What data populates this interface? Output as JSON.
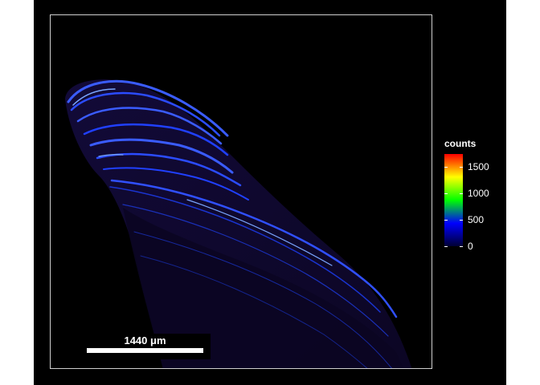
{
  "scale_bar": {
    "label": "1440 μm"
  },
  "legend": {
    "title": "counts",
    "ticks": [
      {
        "label": "1500",
        "value": 1500
      },
      {
        "label": "1000",
        "value": 1000
      },
      {
        "label": "500",
        "value": 500
      },
      {
        "label": "0",
        "value": 0
      }
    ],
    "range": [
      0,
      1750
    ],
    "colors": [
      "#000033",
      "#0000ff",
      "#00ff00",
      "#ffff00",
      "#ff0000"
    ]
  },
  "image": {
    "background": "#000000",
    "sample_color": "#10082a",
    "stripe_color": "#2040ff",
    "highlight_color": "#6a9cff"
  }
}
